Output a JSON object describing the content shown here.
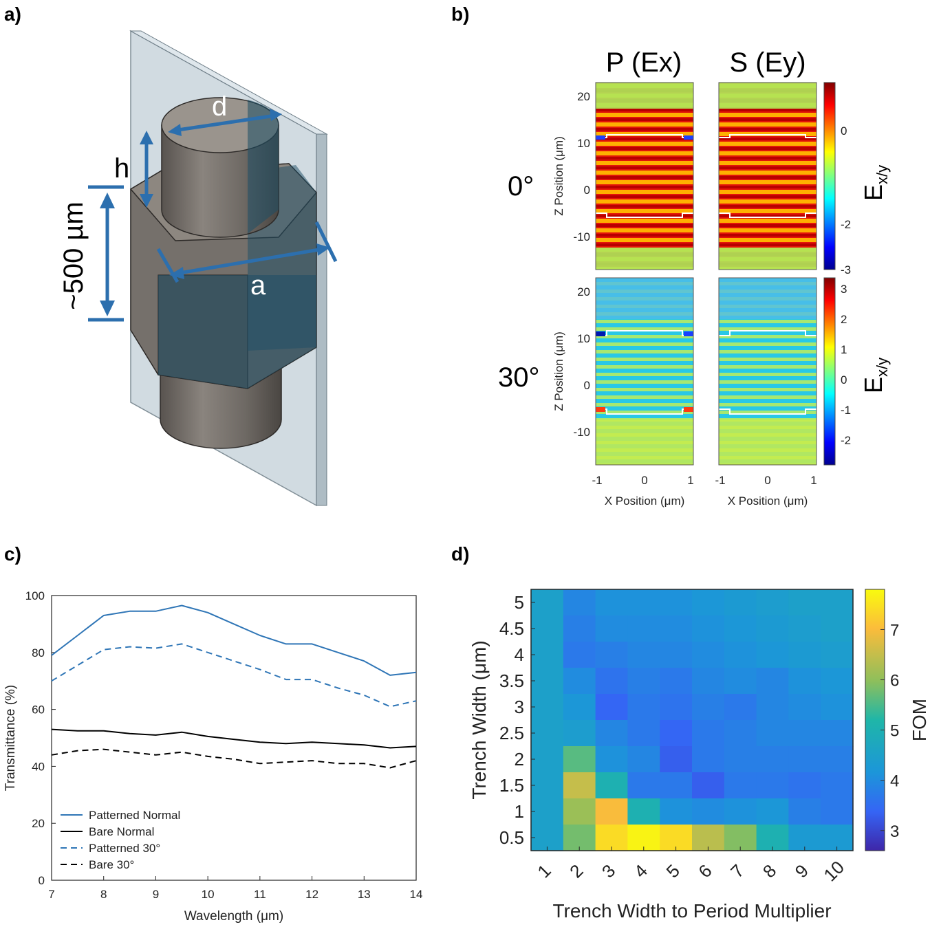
{
  "panel_labels": {
    "a": "a)",
    "b": "b)",
    "c": "c)",
    "d": "d)"
  },
  "panel_a": {
    "dim_d": "d",
    "dim_h": "h",
    "dim_a": "a",
    "height_label": "~500 µm"
  },
  "panel_b": {
    "col_titles": [
      "P (Ex)",
      "S (Ey)"
    ],
    "row_titles": [
      "0°",
      "30°"
    ],
    "ylabel": "Z Position (μm)",
    "xlabel": "X Position (μm)",
    "colorbar_label": "E",
    "colorbar_sub": "x/y",
    "yticks": [
      "20",
      "10",
      "0",
      "-10"
    ],
    "xticks": [
      "-1",
      "0",
      "1"
    ],
    "cbar_ticks_top": [
      "0",
      "-2",
      "-3"
    ],
    "cbar_ticks_bottom": [
      "3",
      "2",
      "1",
      "0",
      "-1",
      "-2"
    ]
  },
  "chart_data": [
    {
      "type": "line",
      "title": "",
      "xlabel": "Wavelength (μm)",
      "ylabel": "Transmittance (%)",
      "xlim": [
        7,
        14
      ],
      "ylim": [
        0,
        100
      ],
      "xticks": [
        "7",
        "8",
        "9",
        "10",
        "11",
        "12",
        "13",
        "14"
      ],
      "yticks": [
        "0",
        "20",
        "40",
        "60",
        "80",
        "100"
      ],
      "x": [
        7.0,
        7.5,
        8.0,
        8.5,
        9.0,
        9.5,
        10.0,
        10.5,
        11.0,
        11.5,
        12.0,
        12.5,
        13.0,
        13.5,
        14.0
      ],
      "series": [
        {
          "name": "Patterned Normal",
          "color": "#2e75b6",
          "dash": "solid",
          "values": [
            79,
            86,
            93,
            94.5,
            94.5,
            96.5,
            94,
            90,
            86,
            83,
            83,
            80,
            77,
            72,
            73
          ]
        },
        {
          "name": "Bare Normal",
          "color": "#000000",
          "dash": "solid",
          "values": [
            53,
            52.5,
            52.5,
            51.5,
            51,
            52,
            50.5,
            49.5,
            48.5,
            48,
            48.5,
            48,
            47.5,
            46.5,
            47
          ]
        },
        {
          "name": "Patterned 30°",
          "color": "#2e75b6",
          "dash": "dashed",
          "values": [
            70,
            75.5,
            81,
            82,
            81.5,
            83,
            80,
            77,
            74,
            70.5,
            70.5,
            67.5,
            65,
            61,
            63
          ]
        },
        {
          "name": "Bare 30°",
          "color": "#000000",
          "dash": "dashed",
          "values": [
            44,
            45.5,
            46,
            45,
            44,
            45,
            43.5,
            42.5,
            41,
            41.5,
            42,
            41,
            41,
            39.5,
            42
          ]
        }
      ],
      "legend_loc": "bottom-left"
    },
    {
      "type": "heatmap",
      "xlabel": "Trench Width to Period Multiplier",
      "ylabel": "Trench Width (μm)",
      "colorbar_label": "FOM",
      "x_categories": [
        "1",
        "2",
        "3",
        "4",
        "5",
        "6",
        "7",
        "8",
        "9",
        "10"
      ],
      "y_categories": [
        "5",
        "4.5",
        "4",
        "3.5",
        "3",
        "2.5",
        "2",
        "1.5",
        "1",
        "0.5"
      ],
      "colorbar_ticks": [
        "7",
        "6",
        "5",
        "4",
        "3"
      ],
      "vmin": 2.6,
      "vmax": 7.8,
      "values": [
        [
          4.5,
          3.9,
          4.1,
          4.1,
          4.1,
          4.2,
          4.3,
          4.4,
          4.5,
          4.5
        ],
        [
          4.5,
          3.8,
          4.0,
          4.0,
          4.0,
          4.1,
          4.2,
          4.3,
          4.4,
          4.5
        ],
        [
          4.5,
          3.7,
          3.8,
          3.9,
          3.9,
          4.0,
          4.1,
          4.2,
          4.3,
          4.4
        ],
        [
          4.5,
          4.0,
          3.6,
          3.8,
          3.7,
          3.9,
          4.0,
          3.9,
          4.1,
          4.2
        ],
        [
          4.5,
          4.2,
          3.4,
          3.7,
          3.6,
          3.8,
          3.7,
          3.9,
          4.0,
          4.1
        ],
        [
          4.5,
          4.4,
          3.9,
          3.7,
          3.4,
          3.7,
          3.8,
          3.9,
          3.9,
          3.9
        ],
        [
          4.5,
          5.6,
          4.1,
          3.9,
          3.3,
          3.7,
          3.8,
          3.8,
          3.8,
          3.8
        ],
        [
          4.5,
          6.5,
          5.0,
          3.7,
          3.7,
          3.3,
          3.7,
          3.7,
          3.6,
          3.7
        ],
        [
          4.5,
          6.1,
          7.0,
          5.0,
          4.1,
          4.0,
          4.1,
          4.2,
          3.8,
          3.7
        ],
        [
          4.5,
          5.8,
          7.4,
          7.7,
          7.4,
          6.4,
          5.9,
          5.0,
          4.3,
          4.3
        ]
      ]
    }
  ]
}
